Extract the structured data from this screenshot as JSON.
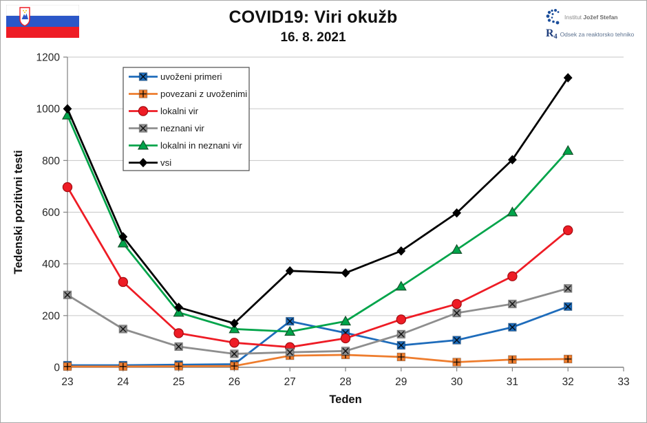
{
  "header": {
    "title": "COVID19: Viri okužb",
    "subtitle": "16. 8. 2021"
  },
  "branding": {
    "flag": "slovenia-flag",
    "institute_prefix": "Institut",
    "institute_name": "Jožef Stefan",
    "logo_r": "R",
    "logo_4": "4",
    "department_name": "Odsek za reaktorsko tehniko"
  },
  "chart_data": {
    "type": "line",
    "title": "COVID19: Viri okužb",
    "subtitle": "16. 8. 2021",
    "xlabel": "Teden",
    "ylabel": "Tedenski pozitivni testi",
    "x": [
      23,
      24,
      25,
      26,
      27,
      28,
      29,
      30,
      31,
      32
    ],
    "xlim": [
      23,
      33
    ],
    "ylim": [
      0,
      1200
    ],
    "xticks": [
      23,
      24,
      25,
      26,
      27,
      28,
      29,
      30,
      31,
      32,
      33
    ],
    "yticks": [
      0,
      200,
      400,
      600,
      800,
      1000,
      1200
    ],
    "grid": "horizontal",
    "legend_position": "top-left-inside",
    "colors": {
      "axis": "#808080",
      "gridline": "#c6c6c6",
      "tick_text": "#262626",
      "legend_border": "#4d4d4d"
    },
    "series": [
      {
        "name": "uvoženi primeri",
        "color": "#1e6cbb",
        "marker": "square-x",
        "values": [
          8,
          8,
          10,
          12,
          178,
          133,
          85,
          105,
          155,
          235
        ]
      },
      {
        "name": "povezani z uvoženimi",
        "color": "#ee7d2e",
        "marker": "square-plus",
        "values": [
          3,
          3,
          4,
          5,
          45,
          48,
          40,
          20,
          30,
          32
        ]
      },
      {
        "name": "lokalni vir",
        "color": "#ee1c25",
        "marker": "circle",
        "values": [
          697,
          330,
          132,
          95,
          78,
          112,
          185,
          245,
          352,
          530
        ]
      },
      {
        "name": "neznani vir",
        "color": "#8e8e8e",
        "marker": "square-diag",
        "values": [
          280,
          148,
          80,
          52,
          58,
          63,
          128,
          210,
          245,
          305
        ]
      },
      {
        "name": "lokalni in neznani vir",
        "color": "#00a44a",
        "marker": "triangle",
        "values": [
          975,
          480,
          212,
          148,
          138,
          178,
          313,
          455,
          600,
          838
        ]
      },
      {
        "name": "vsi",
        "color": "#000000",
        "marker": "diamond",
        "values": [
          1000,
          505,
          232,
          170,
          373,
          365,
          450,
          597,
          803,
          1120
        ]
      }
    ]
  }
}
